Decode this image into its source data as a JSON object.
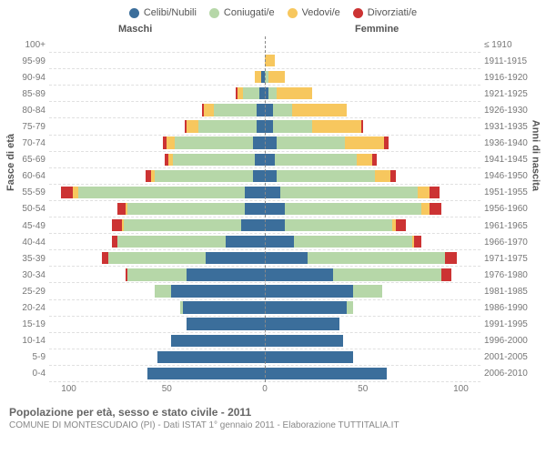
{
  "legend": [
    {
      "label": "Celibi/Nubili",
      "color": "#3b6e9b"
    },
    {
      "label": "Coniugati/e",
      "color": "#b6d7a8"
    },
    {
      "label": "Vedovi/e",
      "color": "#f7c75e"
    },
    {
      "label": "Divorziati/e",
      "color": "#cc3333"
    }
  ],
  "header_male": "Maschi",
  "header_female": "Femmine",
  "ylabel_left": "Fasce di età",
  "ylabel_right": "Anni di nascita",
  "footer_title": "Popolazione per età, sesso e stato civile - 2011",
  "footer_sub": "COMUNE DI MONTESCUDAIO (PI) - Dati ISTAT 1° gennaio 2011 - Elaborazione TUTTITALIA.IT",
  "xmax": 110,
  "xticks_left": [
    100,
    50,
    0
  ],
  "xticks_right": [
    0,
    50,
    100
  ],
  "colors": {
    "celibi": "#3b6e9b",
    "coniugati": "#b6d7a8",
    "vedovi": "#f7c75e",
    "divorziati": "#cc3333",
    "grid": "#e0e0e0",
    "centerline": "#888888",
    "text": "#777777"
  },
  "rows": [
    {
      "age": "100+",
      "birth": "≤ 1910",
      "m": {
        "c": 0,
        "k": 0,
        "v": 0,
        "d": 0
      },
      "f": {
        "c": 0,
        "k": 0,
        "v": 0,
        "d": 0
      }
    },
    {
      "age": "95-99",
      "birth": "1911-1915",
      "m": {
        "c": 0,
        "k": 0,
        "v": 0,
        "d": 0
      },
      "f": {
        "c": 0,
        "k": 0,
        "v": 5,
        "d": 0
      }
    },
    {
      "age": "90-94",
      "birth": "1916-1920",
      "m": {
        "c": 2,
        "k": 0,
        "v": 3,
        "d": 0
      },
      "f": {
        "c": 0,
        "k": 2,
        "v": 8,
        "d": 0
      }
    },
    {
      "age": "85-89",
      "birth": "1921-1925",
      "m": {
        "c": 3,
        "k": 8,
        "v": 3,
        "d": 1
      },
      "f": {
        "c": 2,
        "k": 4,
        "v": 18,
        "d": 0
      }
    },
    {
      "age": "80-84",
      "birth": "1926-1930",
      "m": {
        "c": 4,
        "k": 22,
        "v": 5,
        "d": 1
      },
      "f": {
        "c": 4,
        "k": 10,
        "v": 28,
        "d": 0
      }
    },
    {
      "age": "75-79",
      "birth": "1931-1935",
      "m": {
        "c": 4,
        "k": 30,
        "v": 6,
        "d": 1
      },
      "f": {
        "c": 4,
        "k": 20,
        "v": 25,
        "d": 1
      }
    },
    {
      "age": "70-74",
      "birth": "1936-1940",
      "m": {
        "c": 6,
        "k": 40,
        "v": 4,
        "d": 2
      },
      "f": {
        "c": 6,
        "k": 35,
        "v": 20,
        "d": 2
      }
    },
    {
      "age": "65-69",
      "birth": "1941-1945",
      "m": {
        "c": 5,
        "k": 42,
        "v": 2,
        "d": 2
      },
      "f": {
        "c": 5,
        "k": 42,
        "v": 8,
        "d": 2
      }
    },
    {
      "age": "60-64",
      "birth": "1946-1950",
      "m": {
        "c": 6,
        "k": 50,
        "v": 2,
        "d": 3
      },
      "f": {
        "c": 6,
        "k": 50,
        "v": 8,
        "d": 3
      }
    },
    {
      "age": "55-59",
      "birth": "1951-1955",
      "m": {
        "c": 10,
        "k": 85,
        "v": 3,
        "d": 6
      },
      "f": {
        "c": 8,
        "k": 70,
        "v": 6,
        "d": 5
      }
    },
    {
      "age": "50-54",
      "birth": "1956-1960",
      "m": {
        "c": 10,
        "k": 60,
        "v": 1,
        "d": 4
      },
      "f": {
        "c": 10,
        "k": 70,
        "v": 4,
        "d": 6
      }
    },
    {
      "age": "45-49",
      "birth": "1961-1965",
      "m": {
        "c": 12,
        "k": 60,
        "v": 1,
        "d": 5
      },
      "f": {
        "c": 10,
        "k": 55,
        "v": 2,
        "d": 5
      }
    },
    {
      "age": "40-44",
      "birth": "1966-1970",
      "m": {
        "c": 20,
        "k": 55,
        "v": 0,
        "d": 3
      },
      "f": {
        "c": 15,
        "k": 60,
        "v": 1,
        "d": 4
      }
    },
    {
      "age": "35-39",
      "birth": "1971-1975",
      "m": {
        "c": 30,
        "k": 50,
        "v": 0,
        "d": 3
      },
      "f": {
        "c": 22,
        "k": 70,
        "v": 0,
        "d": 6
      }
    },
    {
      "age": "30-34",
      "birth": "1976-1980",
      "m": {
        "c": 40,
        "k": 30,
        "v": 0,
        "d": 1
      },
      "f": {
        "c": 35,
        "k": 55,
        "v": 0,
        "d": 5
      }
    },
    {
      "age": "25-29",
      "birth": "1981-1985",
      "m": {
        "c": 48,
        "k": 8,
        "v": 0,
        "d": 0
      },
      "f": {
        "c": 45,
        "k": 15,
        "v": 0,
        "d": 0
      }
    },
    {
      "age": "20-24",
      "birth": "1986-1990",
      "m": {
        "c": 42,
        "k": 1,
        "v": 0,
        "d": 0
      },
      "f": {
        "c": 42,
        "k": 3,
        "v": 0,
        "d": 0
      }
    },
    {
      "age": "15-19",
      "birth": "1991-1995",
      "m": {
        "c": 40,
        "k": 0,
        "v": 0,
        "d": 0
      },
      "f": {
        "c": 38,
        "k": 0,
        "v": 0,
        "d": 0
      }
    },
    {
      "age": "10-14",
      "birth": "1996-2000",
      "m": {
        "c": 48,
        "k": 0,
        "v": 0,
        "d": 0
      },
      "f": {
        "c": 40,
        "k": 0,
        "v": 0,
        "d": 0
      }
    },
    {
      "age": "5-9",
      "birth": "2001-2005",
      "m": {
        "c": 55,
        "k": 0,
        "v": 0,
        "d": 0
      },
      "f": {
        "c": 45,
        "k": 0,
        "v": 0,
        "d": 0
      }
    },
    {
      "age": "0-4",
      "birth": "2006-2010",
      "m": {
        "c": 60,
        "k": 0,
        "v": 0,
        "d": 0
      },
      "f": {
        "c": 62,
        "k": 0,
        "v": 0,
        "d": 0
      }
    }
  ]
}
